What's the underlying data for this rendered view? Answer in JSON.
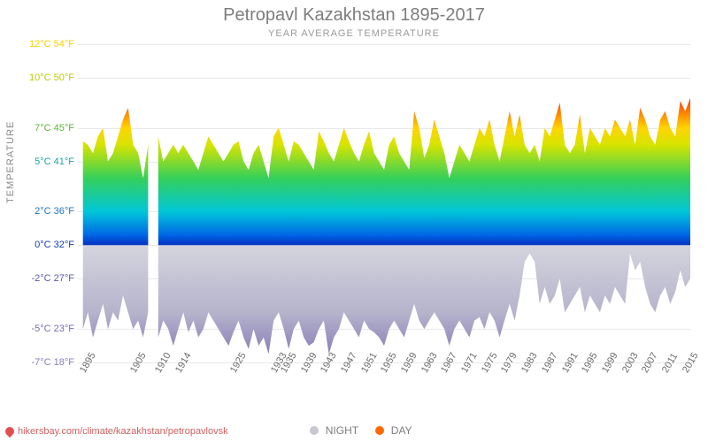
{
  "title": "Petropavl Kazakhstan 1895-2017",
  "subtitle": "YEAR AVERAGE TEMPERATURE",
  "y_axis_label": "TEMPERATURE",
  "source_label": "hikersbay.com/climate/kazakhstan/petropavlovsk",
  "legend": {
    "night": "NIGHT",
    "day": "DAY",
    "night_color": "#c8c8d2",
    "day_color": "#ff6a00"
  },
  "chart": {
    "type": "area",
    "background_color": "#ffffff",
    "grid_color": "#e9e9e9",
    "y_axis": {
      "min_c": -7,
      "max_c": 12,
      "ticks": [
        {
          "c": 12,
          "f": 54,
          "color": "#f4d000"
        },
        {
          "c": 10,
          "f": 50,
          "color": "#bfca00"
        },
        {
          "c": 7,
          "f": 45,
          "color": "#5fb43a"
        },
        {
          "c": 5,
          "f": 41,
          "color": "#1fa5a0"
        },
        {
          "c": 2,
          "f": 36,
          "color": "#1c74c9"
        },
        {
          "c": 0,
          "f": 32,
          "color": "#1340a8"
        },
        {
          "c": -2,
          "f": 27,
          "color": "#5a5aa7"
        },
        {
          "c": -5,
          "f": 23,
          "color": "#7a6cb2"
        },
        {
          "c": -7,
          "f": 18,
          "color": "#8a7cc0"
        }
      ]
    },
    "x_axis": {
      "ticks": [
        1895,
        1905,
        1910,
        1914,
        1925,
        1933,
        1935,
        1939,
        1943,
        1947,
        1951,
        1955,
        1959,
        1963,
        1967,
        1971,
        1975,
        1979,
        1983,
        1987,
        1991,
        1995,
        1999,
        2003,
        2007,
        2011,
        2015
      ]
    },
    "xtick_fontsize": 11,
    "ytick_fontsize": 11,
    "xtick_color": "#6a6a6a",
    "day_gradient_stops": [
      {
        "c": 9,
        "color": "#ff3a00"
      },
      {
        "c": 8,
        "color": "#ff7a00"
      },
      {
        "c": 7,
        "color": "#ffd400"
      },
      {
        "c": 6,
        "color": "#d7e400"
      },
      {
        "c": 4,
        "color": "#35d05a"
      },
      {
        "c": 2,
        "color": "#00c6d9"
      },
      {
        "c": 0.6,
        "color": "#0066e6"
      },
      {
        "c": 0,
        "color": "#0030c0"
      }
    ],
    "night_gradient_stops": [
      {
        "c": 0,
        "color": "#d4d4de"
      },
      {
        "c": -4,
        "color": "#b6b4cc"
      },
      {
        "c": -7,
        "color": "#8a80b8"
      }
    ],
    "years": [
      1895,
      1896,
      1897,
      1898,
      1899,
      1900,
      1901,
      1902,
      1903,
      1904,
      1905,
      1906,
      1907,
      1908,
      1909,
      1910,
      1911,
      1912,
      1913,
      1914,
      1915,
      1916,
      1917,
      1918,
      1919,
      1920,
      1921,
      1922,
      1923,
      1924,
      1925,
      1926,
      1927,
      1928,
      1929,
      1930,
      1931,
      1932,
      1933,
      1934,
      1935,
      1936,
      1937,
      1938,
      1939,
      1940,
      1941,
      1942,
      1943,
      1944,
      1945,
      1946,
      1947,
      1948,
      1949,
      1950,
      1951,
      1952,
      1953,
      1954,
      1955,
      1956,
      1957,
      1958,
      1959,
      1960,
      1961,
      1962,
      1963,
      1964,
      1965,
      1966,
      1967,
      1968,
      1969,
      1970,
      1971,
      1972,
      1973,
      1974,
      1975,
      1976,
      1977,
      1978,
      1979,
      1980,
      1981,
      1982,
      1983,
      1984,
      1985,
      1986,
      1987,
      1988,
      1989,
      1990,
      1991,
      1992,
      1993,
      1994,
      1995,
      1996,
      1997,
      1998,
      1999,
      2000,
      2001,
      2002,
      2003,
      2004,
      2005,
      2006,
      2007,
      2008,
      2009,
      2010,
      2011,
      2012,
      2013,
      2014,
      2015,
      2016,
      2017
    ],
    "day_values": [
      0,
      6.2,
      6.0,
      5.5,
      6.5,
      7.0,
      5.0,
      5.5,
      6.5,
      7.5,
      8.2,
      6.0,
      5.5,
      4.0,
      6.0,
      0,
      6.5,
      5.0,
      5.5,
      6.0,
      5.5,
      6.0,
      5.5,
      5.0,
      4.5,
      5.5,
      6.5,
      6.0,
      5.5,
      5.0,
      5.5,
      6.0,
      6.2,
      5.0,
      4.5,
      5.5,
      6.0,
      5.0,
      4.0,
      6.5,
      7.0,
      6.0,
      5.0,
      6.2,
      6.0,
      5.5,
      5.0,
      4.5,
      6.8,
      6.2,
      5.5,
      5.0,
      6.0,
      7.0,
      6.2,
      5.5,
      5.0,
      6.0,
      6.8,
      5.5,
      5.0,
      4.5,
      6.0,
      6.5,
      5.5,
      5.0,
      4.5,
      8.0,
      7.0,
      5.2,
      6.0,
      7.5,
      6.5,
      5.5,
      4.0,
      5.0,
      6.0,
      5.5,
      5.0,
      6.0,
      7.0,
      6.5,
      7.5,
      6.0,
      5.0,
      6.5,
      8.0,
      6.5,
      7.8,
      6.0,
      5.5,
      6.0,
      5.0,
      7.0,
      6.5,
      7.5,
      8.5,
      6.0,
      5.5,
      6.0,
      7.8,
      5.5,
      7.0,
      6.5,
      6.0,
      7.0,
      6.5,
      7.5,
      7.0,
      6.5,
      7.5,
      6.0,
      8.2,
      7.5,
      6.5,
      6.0,
      7.5,
      8.0,
      7.0,
      6.5,
      8.6,
      8.0,
      8.8
    ],
    "night_values": [
      0,
      -5.0,
      -4.0,
      -5.5,
      -4.5,
      -3.5,
      -5.0,
      -4.0,
      -4.5,
      -3.0,
      -4.0,
      -5.0,
      -4.5,
      -5.5,
      -4.0,
      0,
      -5.5,
      -4.5,
      -5.0,
      -6.0,
      -5.0,
      -4.0,
      -5.2,
      -4.5,
      -5.5,
      -5.0,
      -4.0,
      -4.5,
      -5.0,
      -5.5,
      -6.0,
      -5.2,
      -4.5,
      -5.5,
      -6.2,
      -5.0,
      -6.0,
      -5.5,
      -6.5,
      -4.5,
      -4.0,
      -5.0,
      -6.2,
      -5.0,
      -4.5,
      -5.5,
      -6.0,
      -5.8,
      -5.0,
      -4.5,
      -6.5,
      -5.5,
      -5.0,
      -4.0,
      -4.5,
      -5.0,
      -5.5,
      -4.5,
      -5.0,
      -5.2,
      -5.5,
      -6.0,
      -5.0,
      -4.5,
      -5.0,
      -5.5,
      -4.5,
      -3.5,
      -4.5,
      -5.0,
      -4.5,
      -4.0,
      -4.5,
      -5.0,
      -6.0,
      -5.0,
      -4.5,
      -5.0,
      -5.5,
      -4.5,
      -4.3,
      -5.0,
      -4.0,
      -4.5,
      -5.5,
      -4.5,
      -3.5,
      -4.5,
      -3.0,
      -1.0,
      -0.5,
      -1.0,
      -3.5,
      -2.5,
      -3.5,
      -3.0,
      -2.0,
      -4.0,
      -3.5,
      -3.0,
      -2.5,
      -4.0,
      -3.0,
      -3.5,
      -4.0,
      -3.0,
      -3.5,
      -2.5,
      -3.0,
      -3.5,
      -0.5,
      -1.5,
      -1.0,
      -2.5,
      -3.5,
      -4.0,
      -3.0,
      -2.5,
      -3.5,
      -2.8,
      -1.5,
      -2.5,
      -2.0
    ]
  }
}
